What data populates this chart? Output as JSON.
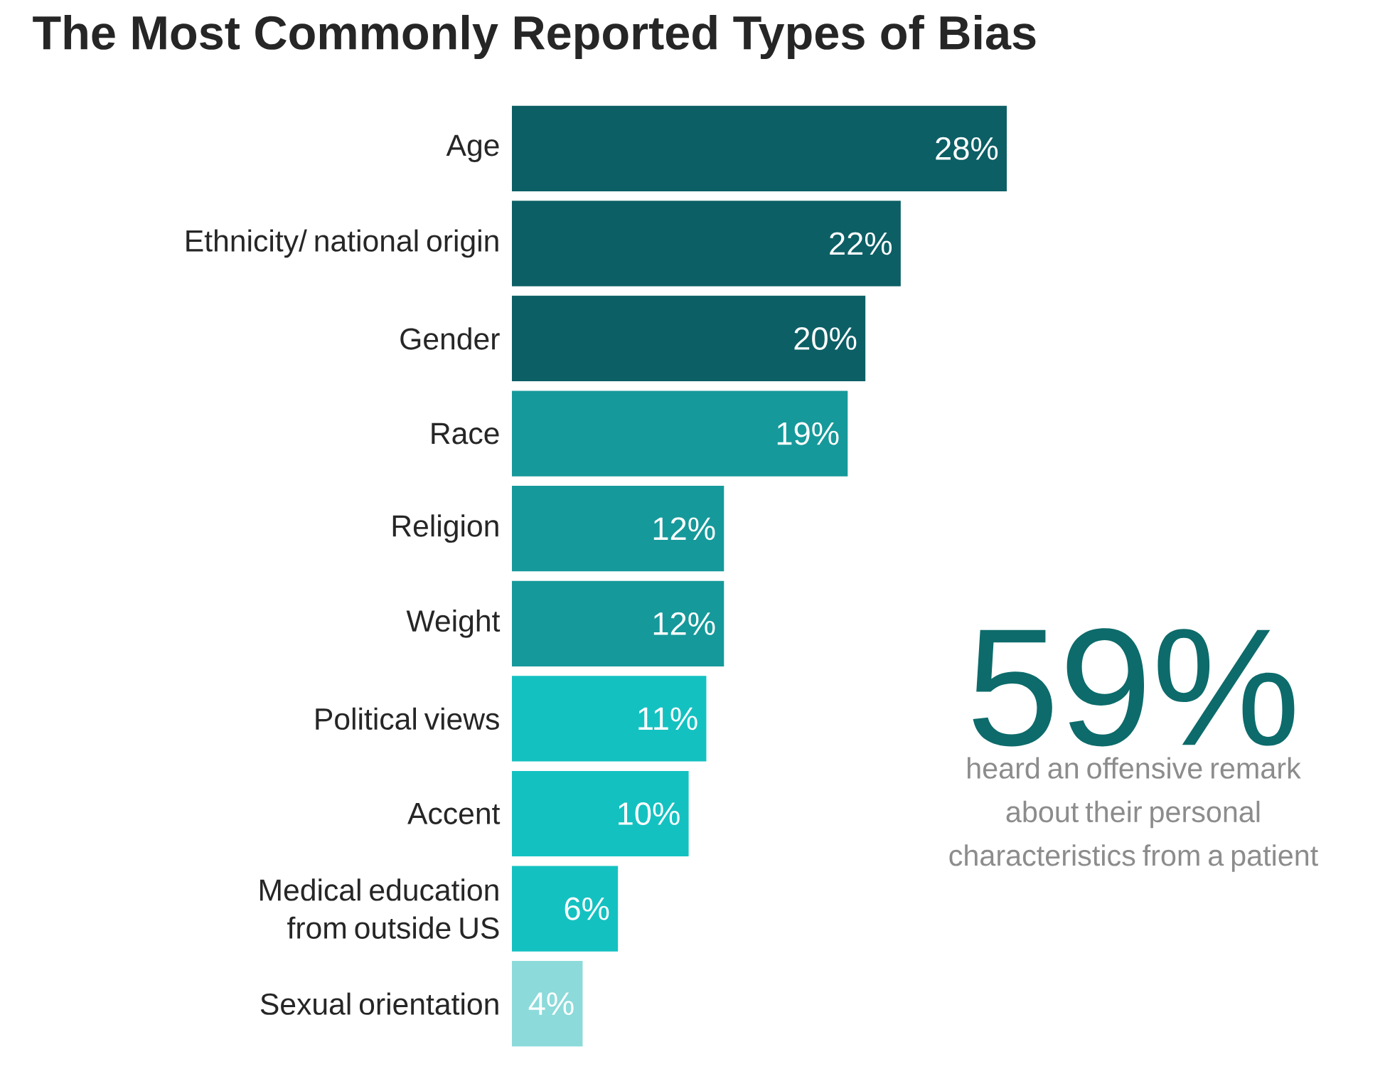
{
  "chart_data": {
    "type": "bar",
    "orientation": "horizontal",
    "title": "The Most Commonly Reported Types of Bias",
    "categories": [
      "Age",
      "Ethnicity/ national origin",
      "Gender",
      "Race",
      "Religion",
      "Weight",
      "Political views",
      "Accent",
      "Medical education from outside US",
      "Sexual orientation"
    ],
    "values": [
      28,
      22,
      20,
      19,
      12,
      12,
      11,
      10,
      6,
      4
    ],
    "value_labels": [
      "28%",
      "22%",
      "20%",
      "19%",
      "12%",
      "12%",
      "11%",
      "10%",
      "6%",
      "4%"
    ],
    "colors": [
      "#0c5f65",
      "#0c5f65",
      "#0c5f65",
      "#16999a",
      "#16999a",
      "#16999a",
      "#14c1c1",
      "#14c1c1",
      "#14c1c1",
      "#8cdada"
    ],
    "annotations": [
      "59%",
      "heard an offensive remark about their personal characteristics from a patient"
    ]
  }
}
